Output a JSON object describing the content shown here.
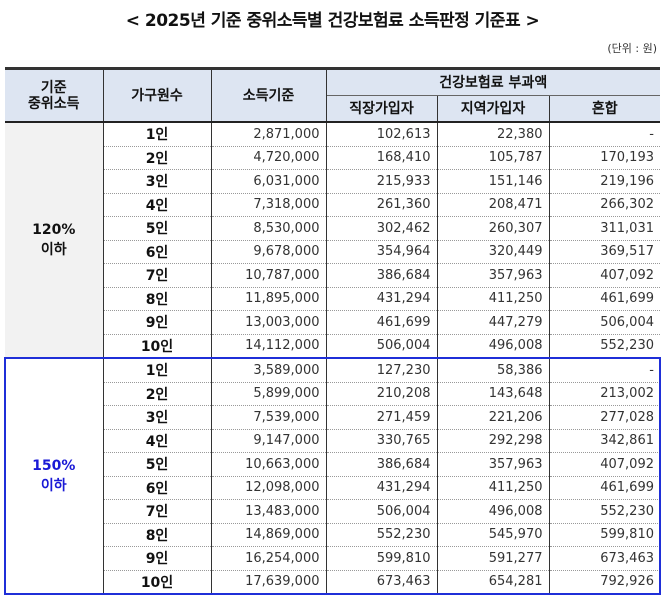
{
  "title": "< 2025년 기준 중위소득별 건강보험료 소득판정 기준표 >",
  "unit": "(단위 : 원)",
  "headers": {
    "median_income": "기준\n중위소득",
    "household": "가구원수",
    "income_criterion": "소득기준",
    "premium_group": "건강보험료 부과액",
    "employee": "직장가입자",
    "regional": "지역가입자",
    "mixed": "혼합"
  },
  "colors": {
    "highlight_border": "#1f2fd8",
    "highlight_text": "#1a1ad6",
    "header_bg": "#dde5f2"
  },
  "groups": [
    {
      "label": "120%\n이하",
      "rows": [
        [
          "1인",
          "2,871,000",
          "102,613",
          "22,380",
          "-"
        ],
        [
          "2인",
          "4,720,000",
          "168,410",
          "105,787",
          "170,193"
        ],
        [
          "3인",
          "6,031,000",
          "215,933",
          "151,146",
          "219,196"
        ],
        [
          "4인",
          "7,318,000",
          "261,360",
          "208,471",
          "266,302"
        ],
        [
          "5인",
          "8,530,000",
          "302,462",
          "260,307",
          "311,031"
        ],
        [
          "6인",
          "9,678,000",
          "354,964",
          "320,449",
          "369,517"
        ],
        [
          "7인",
          "10,787,000",
          "386,684",
          "357,963",
          "407,092"
        ],
        [
          "8인",
          "11,895,000",
          "431,294",
          "411,250",
          "461,699"
        ],
        [
          "9인",
          "13,003,000",
          "461,699",
          "447,279",
          "506,004"
        ],
        [
          "10인",
          "14,112,000",
          "506,004",
          "496,008",
          "552,230"
        ]
      ]
    },
    {
      "label": "150%\n이하",
      "rows": [
        [
          "1인",
          "3,589,000",
          "127,230",
          "58,386",
          "-"
        ],
        [
          "2인",
          "5,899,000",
          "210,208",
          "143,648",
          "213,002"
        ],
        [
          "3인",
          "7,539,000",
          "271,459",
          "221,206",
          "277,028"
        ],
        [
          "4인",
          "9,147,000",
          "330,765",
          "292,298",
          "342,861"
        ],
        [
          "5인",
          "10,663,000",
          "386,684",
          "357,963",
          "407,092"
        ],
        [
          "6인",
          "12,098,000",
          "431,294",
          "411,250",
          "461,699"
        ],
        [
          "7인",
          "13,483,000",
          "506,004",
          "496,008",
          "552,230"
        ],
        [
          "8인",
          "14,869,000",
          "552,230",
          "545,970",
          "599,810"
        ],
        [
          "9인",
          "16,254,000",
          "599,810",
          "591,277",
          "673,463"
        ],
        [
          "10인",
          "17,639,000",
          "673,463",
          "654,281",
          "792,926"
        ]
      ]
    }
  ]
}
